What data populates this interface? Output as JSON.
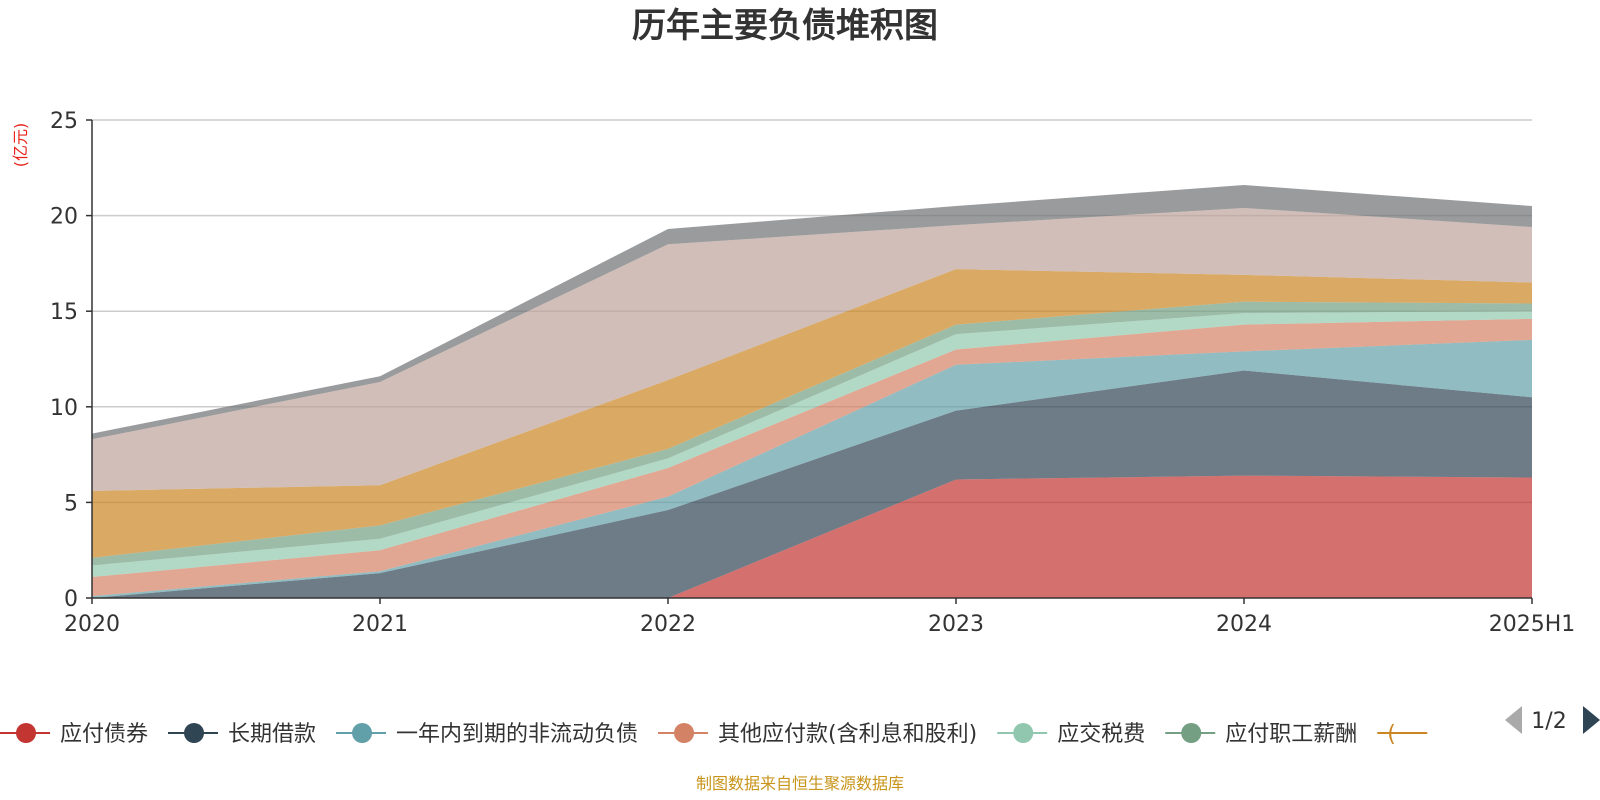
{
  "chart_data": {
    "type": "area",
    "stacked": true,
    "title": "历年主要负债堆积图",
    "unit_label": "(亿元)",
    "categories": [
      "2020",
      "2021",
      "2022",
      "2023",
      "2024",
      "2025H1"
    ],
    "ylim": [
      0,
      25
    ],
    "yticks": [
      0,
      5,
      10,
      15,
      20,
      25
    ],
    "grid": true,
    "series": [
      {
        "name": "应付债券",
        "color": "#c23531",
        "values": [
          0,
          0,
          0,
          6.2,
          6.4,
          6.3
        ]
      },
      {
        "name": "长期借款",
        "color": "#2f4554",
        "values": [
          0,
          1.3,
          4.6,
          3.6,
          5.5,
          4.2
        ]
      },
      {
        "name": "一年内到期的非流动负债",
        "color": "#61a0a8",
        "values": [
          0.1,
          0.1,
          0.7,
          2.4,
          1.0,
          3.0
        ]
      },
      {
        "name": "其他应付款(含利息和股利)",
        "color": "#d48265",
        "values": [
          1.0,
          1.1,
          1.5,
          0.8,
          1.4,
          1.1
        ]
      },
      {
        "name": "应交税费",
        "color": "#91c7ae",
        "values": [
          0.6,
          0.6,
          0.5,
          0.8,
          0.6,
          0.4
        ]
      },
      {
        "name": "应付职工薪酬",
        "color": "#749f83",
        "values": [
          0.4,
          0.7,
          0.5,
          0.5,
          0.6,
          0.4
        ]
      },
      {
        "name": "",
        "color": "#ca8622",
        "values": [
          3.5,
          2.1,
          3.6,
          2.9,
          1.4,
          1.1
        ]
      },
      {
        "name": "",
        "color": "#bda29a",
        "values": [
          2.7,
          5.4,
          7.1,
          2.3,
          3.5,
          2.9
        ]
      },
      {
        "name": "",
        "color": "#6e7074",
        "values": [
          0.3,
          0.3,
          0.8,
          1.0,
          1.2,
          1.1
        ]
      }
    ],
    "legend": {
      "position": "bottom",
      "visible_count": 6,
      "truncated_glyph": "(",
      "page": "1/2"
    },
    "source_note": "制图数据来自恒生聚源数据库"
  }
}
